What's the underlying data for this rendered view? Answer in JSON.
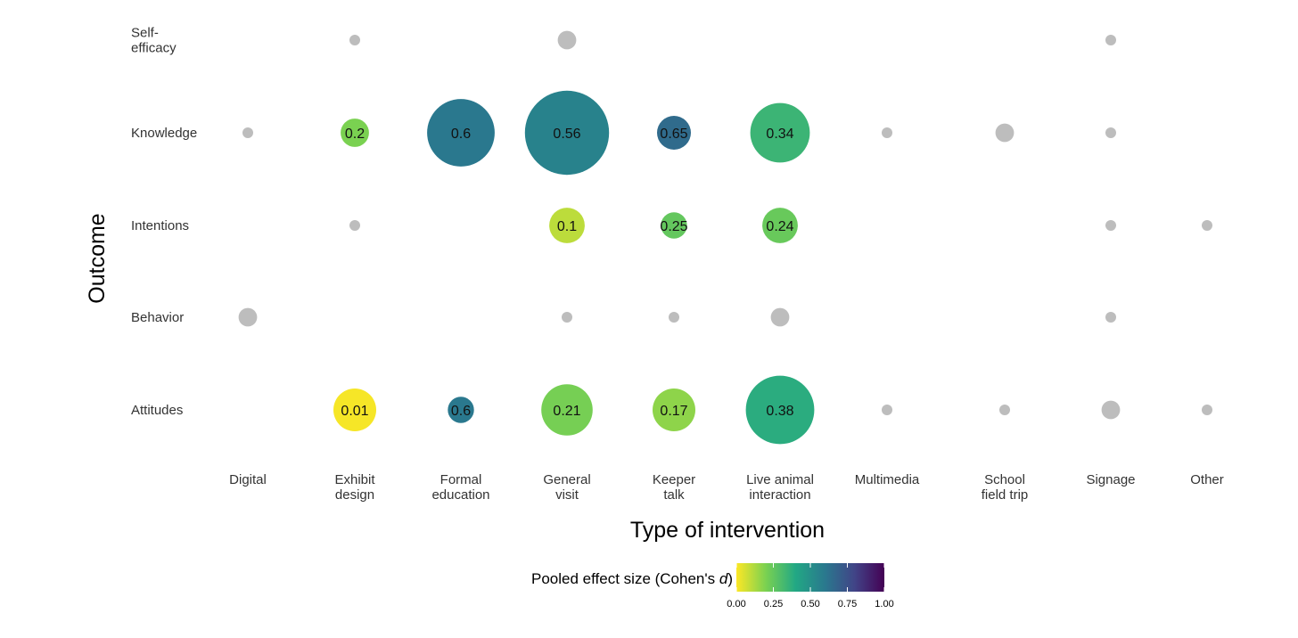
{
  "chart_data": {
    "type": "scatter",
    "subtype": "bubble",
    "xlabel": "Type of intervention",
    "ylabel": "Outcome",
    "x_categories": [
      "Digital",
      "Exhibit design",
      "Formal education",
      "General visit",
      "Keeper talk",
      "Live animal interaction",
      "Multimedia",
      "School field trip",
      "Signage",
      "Other"
    ],
    "x_tick_labels": [
      [
        "Digital"
      ],
      [
        "Exhibit",
        "design"
      ],
      [
        "Formal",
        "education"
      ],
      [
        "General",
        "visit"
      ],
      [
        "Keeper",
        "talk"
      ],
      [
        "Live animal",
        "interaction"
      ],
      [
        "Multimedia"
      ],
      [
        "School",
        "field trip"
      ],
      [
        "Signage"
      ],
      [
        "Other"
      ]
    ],
    "y_categories": [
      "Self-efficacy",
      "Knowledge",
      "Intentions",
      "Behavior",
      "Attitudes"
    ],
    "y_tick_labels": [
      [
        "Self-",
        "efficacy"
      ],
      [
        "Knowledge"
      ],
      [
        "Intentions"
      ],
      [
        "Behavior"
      ],
      [
        "Attitudes"
      ]
    ],
    "grid": false,
    "legend": {
      "title_prefix": "Pooled effect size (Cohen's ",
      "title_italic": "d",
      "title_suffix": ")",
      "placement": "bottom",
      "ticks": [
        "0.00",
        "0.25",
        "0.50",
        "0.75",
        "1.00"
      ],
      "range": [
        0,
        1
      ],
      "colors": [
        "#fde725",
        "#7ad151",
        "#22a884",
        "#2a788e",
        "#414487",
        "#440154"
      ]
    },
    "no_estimate_color": "#bdbdbd",
    "points": [
      {
        "x": "Exhibit design",
        "y": "Self-efficacy",
        "size": 1,
        "effect": null
      },
      {
        "x": "General visit",
        "y": "Self-efficacy",
        "size": 3,
        "effect": null
      },
      {
        "x": "Signage",
        "y": "Self-efficacy",
        "size": 1,
        "effect": null
      },
      {
        "x": "Digital",
        "y": "Knowledge",
        "size": 1,
        "effect": null
      },
      {
        "x": "Exhibit design",
        "y": "Knowledge",
        "size": 7,
        "effect": 0.2,
        "label": "0.2"
      },
      {
        "x": "Formal education",
        "y": "Knowledge",
        "size": 40,
        "effect": 0.6,
        "label": "0.6"
      },
      {
        "x": "General visit",
        "y": "Knowledge",
        "size": 62,
        "effect": 0.56,
        "label": "0.56"
      },
      {
        "x": "Keeper talk",
        "y": "Knowledge",
        "size": 10,
        "effect": 0.65,
        "label": "0.65"
      },
      {
        "x": "Live animal interaction",
        "y": "Knowledge",
        "size": 31,
        "effect": 0.34,
        "label": "0.34"
      },
      {
        "x": "Multimedia",
        "y": "Knowledge",
        "size": 1,
        "effect": null
      },
      {
        "x": "School field trip",
        "y": "Knowledge",
        "size": 3,
        "effect": null
      },
      {
        "x": "Signage",
        "y": "Knowledge",
        "size": 1,
        "effect": null
      },
      {
        "x": "Exhibit design",
        "y": "Intentions",
        "size": 1,
        "effect": null
      },
      {
        "x": "General visit",
        "y": "Intentions",
        "size": 11,
        "effect": 0.1,
        "label": "0.1"
      },
      {
        "x": "Keeper talk",
        "y": "Intentions",
        "size": 6,
        "effect": 0.25,
        "label": "0.25"
      },
      {
        "x": "Live animal interaction",
        "y": "Intentions",
        "size": 11,
        "effect": 0.24,
        "label": "0.24"
      },
      {
        "x": "Signage",
        "y": "Intentions",
        "size": 1,
        "effect": null
      },
      {
        "x": "Other",
        "y": "Intentions",
        "size": 1,
        "effect": null
      },
      {
        "x": "Digital",
        "y": "Behavior",
        "size": 3,
        "effect": null
      },
      {
        "x": "General visit",
        "y": "Behavior",
        "size": 1,
        "effect": null
      },
      {
        "x": "Keeper talk",
        "y": "Behavior",
        "size": 1,
        "effect": null
      },
      {
        "x": "Live animal interaction",
        "y": "Behavior",
        "size": 3,
        "effect": null
      },
      {
        "x": "Signage",
        "y": "Behavior",
        "size": 1,
        "effect": null
      },
      {
        "x": "Exhibit design",
        "y": "Attitudes",
        "size": 16,
        "effect": 0.01,
        "label": "0.01"
      },
      {
        "x": "Formal education",
        "y": "Attitudes",
        "size": 6,
        "effect": 0.6,
        "label": "0.6"
      },
      {
        "x": "General visit",
        "y": "Attitudes",
        "size": 23,
        "effect": 0.21,
        "label": "0.21"
      },
      {
        "x": "Keeper talk",
        "y": "Attitudes",
        "size": 16,
        "effect": 0.17,
        "label": "0.17"
      },
      {
        "x": "Live animal interaction",
        "y": "Attitudes",
        "size": 41,
        "effect": 0.38,
        "label": "0.38"
      },
      {
        "x": "Multimedia",
        "y": "Attitudes",
        "size": 1,
        "effect": null
      },
      {
        "x": "School field trip",
        "y": "Attitudes",
        "size": 1,
        "effect": null
      },
      {
        "x": "Signage",
        "y": "Attitudes",
        "size": 3,
        "effect": null
      },
      {
        "x": "Other",
        "y": "Attitudes",
        "size": 1,
        "effect": null
      }
    ]
  }
}
